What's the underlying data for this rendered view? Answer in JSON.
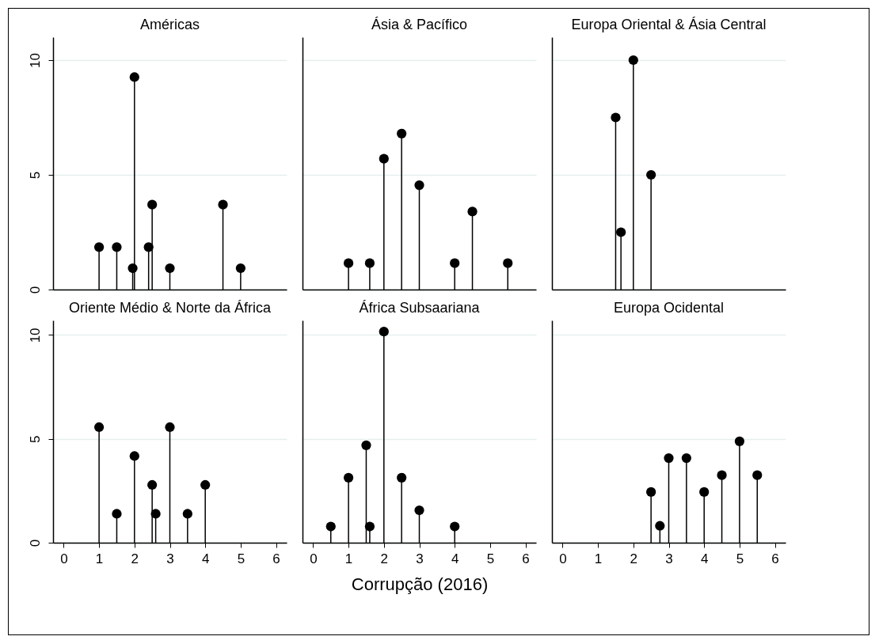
{
  "chart_data": [
    {
      "type": "lollipop",
      "title": "Américas",
      "x": [
        1,
        1.5,
        1.95,
        2,
        2.4,
        2.5,
        3,
        4.5,
        5
      ],
      "values": [
        1.85,
        1.85,
        0.93,
        9.26,
        1.85,
        3.7,
        0.93,
        3.7,
        0.93
      ],
      "color": "#000000",
      "marker": "circle",
      "xlim": [
        -0.3,
        6.3
      ],
      "xticks": [
        0,
        1,
        2,
        3,
        4,
        5,
        6
      ],
      "ylim": [
        0,
        11
      ],
      "yticks": [
        0,
        5,
        10
      ],
      "grid": "y",
      "tick_labels": "y"
    },
    {
      "type": "lollipop",
      "title": "Ásia & Pacífico",
      "x": [
        1,
        1.6,
        2,
        2.5,
        3,
        4,
        4.5,
        5.5
      ],
      "values": [
        1.15,
        1.15,
        5.7,
        6.8,
        4.55,
        1.15,
        3.4,
        1.15
      ],
      "color": "#000000",
      "marker": "circle",
      "xlim": [
        -0.3,
        6.3
      ],
      "xticks": [
        0,
        1,
        2,
        3,
        4,
        5,
        6
      ],
      "ylim": [
        0,
        11
      ],
      "yticks": [
        0,
        5,
        10
      ],
      "grid": "y",
      "tick_labels": false
    },
    {
      "type": "lollipop",
      "title": "Europa Oriental & Ásia Central",
      "x": [
        1.5,
        1.65,
        2,
        2.5
      ],
      "values": [
        7.5,
        2.5,
        10,
        5
      ],
      "color": "#000000",
      "marker": "circle",
      "xlim": [
        -0.3,
        6.3
      ],
      "xticks": [
        0,
        1,
        2,
        3,
        4,
        5,
        6
      ],
      "ylim": [
        0,
        11
      ],
      "yticks": [
        0,
        5,
        10
      ],
      "grid": "y",
      "tick_labels": false
    },
    {
      "type": "lollipop",
      "title": "Oriente Médio & Norte da África",
      "x": [
        1,
        1.5,
        2,
        2.5,
        2.6,
        3,
        3.5,
        4
      ],
      "values": [
        5.56,
        1.39,
        4.17,
        2.78,
        1.39,
        5.56,
        1.39,
        2.78
      ],
      "color": "#000000",
      "marker": "circle",
      "xlim": [
        -0.3,
        6.3
      ],
      "xticks": [
        0,
        1,
        2,
        3,
        4,
        5,
        6
      ],
      "ylim": [
        0,
        10.7
      ],
      "yticks": [
        0,
        5,
        10
      ],
      "grid": "y"
    },
    {
      "type": "lollipop",
      "title": "África Subsaariana",
      "xlabel": "Corrupção (2016)",
      "x": [
        0.5,
        1,
        1.5,
        1.6,
        2,
        2.5,
        3,
        4
      ],
      "values": [
        0.78,
        3.13,
        4.69,
        0.78,
        10.16,
        3.13,
        1.56,
        0.78
      ],
      "color": "#000000",
      "marker": "circle",
      "xlim": [
        -0.3,
        6.3
      ],
      "xticks": [
        0,
        1,
        2,
        3,
        4,
        5,
        6
      ],
      "ylim": [
        0,
        10.7
      ],
      "yticks": [
        0,
        5,
        10
      ],
      "grid": "y",
      "tick_labels": "x"
    },
    {
      "type": "lollipop",
      "title": "Europa Ocidental",
      "x": [
        2.5,
        2.75,
        3,
        3.5,
        4,
        4.5,
        5,
        5.5
      ],
      "values": [
        2.44,
        0.81,
        4.07,
        4.07,
        2.44,
        3.25,
        4.88,
        3.25
      ],
      "color": "#000000",
      "marker": "circle",
      "xlim": [
        -0.3,
        6.3
      ],
      "xticks": [
        0,
        1,
        2,
        3,
        4,
        5,
        6
      ],
      "ylim": [
        0,
        10.7
      ],
      "yticks": [
        0,
        5,
        10
      ],
      "grid": "y",
      "tick_labels": "x"
    }
  ]
}
